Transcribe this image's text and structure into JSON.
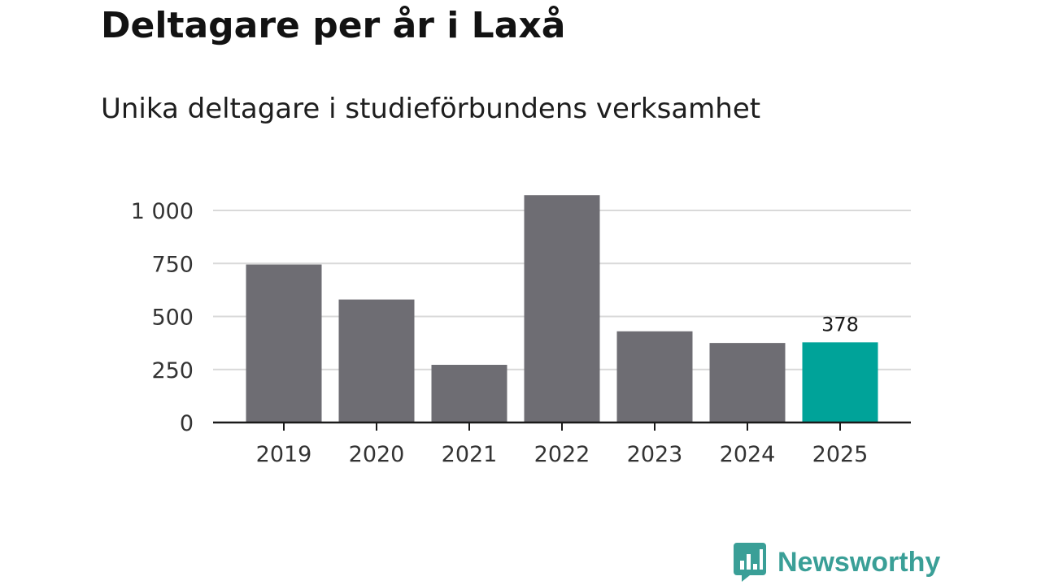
{
  "header": {
    "title": "Deltagare per år i Laxå",
    "subtitle": "Unika deltagare i studieförbundens verksamhet"
  },
  "brand": {
    "name": "Newsworthy",
    "icon": "newsworthy-logo-icon",
    "color": "#3a9f97"
  },
  "colors": {
    "bar": "#6e6d73",
    "highlight": "#00a399",
    "grid": "#d9d9d9",
    "axis": "#1a1a1a"
  },
  "chart_data": {
    "type": "bar",
    "title": "Deltagare per år i Laxå",
    "subtitle": "Unika deltagare i studieförbundens verksamhet",
    "xlabel": "",
    "ylabel": "",
    "categories": [
      "2019",
      "2020",
      "2021",
      "2022",
      "2023",
      "2024",
      "2025"
    ],
    "values": [
      745,
      580,
      272,
      1072,
      430,
      375,
      378
    ],
    "highlight_index": 6,
    "data_labels": [
      {
        "index": 6,
        "text": "378"
      }
    ],
    "ylim": [
      0,
      1000
    ],
    "yticks": [
      0,
      250,
      500,
      750,
      1000
    ],
    "ytick_labels": [
      "0",
      "250",
      "500",
      "750",
      "1 000"
    ],
    "grid": true,
    "legend": "none"
  }
}
